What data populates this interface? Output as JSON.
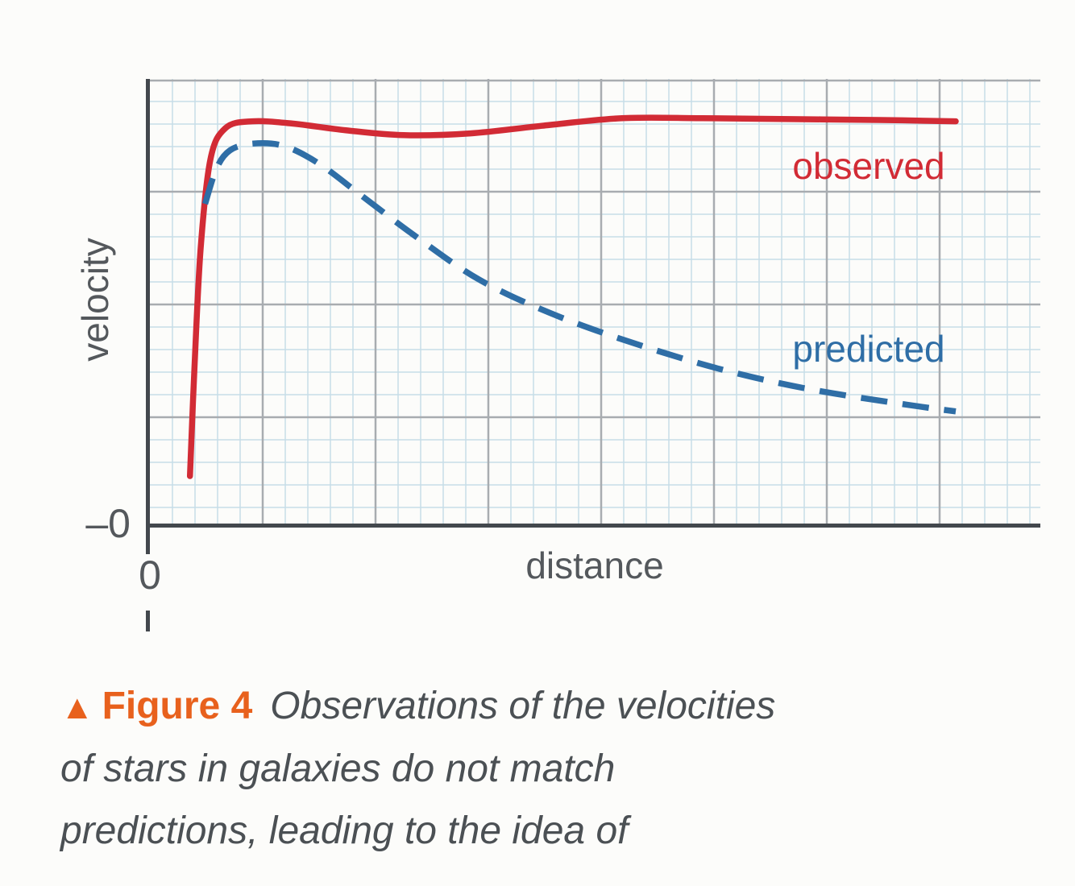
{
  "figure": {
    "marker": "▲",
    "label": "Figure 4",
    "caption": "Observations of the velocities of stars in galaxies do not match predictions, leading to the idea of"
  },
  "chart_data": {
    "type": "line",
    "title": "",
    "xlabel": "distance",
    "ylabel": "velocity",
    "x_origin_label": "0",
    "y_origin_label": "–0",
    "x_range": [
      0,
      1
    ],
    "y_range": [
      0,
      1
    ],
    "grid": true,
    "grid_colors": {
      "minor": "#c7dde8",
      "major": "#a8acb0"
    },
    "axis_color": "#43484d",
    "series": [
      {
        "name": "observed",
        "color": "#d22b35",
        "style": "solid",
        "points": [
          [
            0.045,
            0.11
          ],
          [
            0.05,
            0.35
          ],
          [
            0.057,
            0.62
          ],
          [
            0.068,
            0.82
          ],
          [
            0.085,
            0.89
          ],
          [
            0.115,
            0.905
          ],
          [
            0.16,
            0.9
          ],
          [
            0.22,
            0.885
          ],
          [
            0.285,
            0.874
          ],
          [
            0.36,
            0.878
          ],
          [
            0.44,
            0.895
          ],
          [
            0.53,
            0.912
          ],
          [
            0.62,
            0.912
          ],
          [
            0.72,
            0.91
          ],
          [
            0.82,
            0.908
          ],
          [
            0.905,
            0.905
          ]
        ]
      },
      {
        "name": "predicted",
        "color": "#2f6ea6",
        "style": "dashed",
        "points": [
          [
            0.062,
            0.72
          ],
          [
            0.075,
            0.8
          ],
          [
            0.09,
            0.84
          ],
          [
            0.115,
            0.855
          ],
          [
            0.15,
            0.85
          ],
          [
            0.19,
            0.81
          ],
          [
            0.24,
            0.735
          ],
          [
            0.3,
            0.645
          ],
          [
            0.37,
            0.55
          ],
          [
            0.45,
            0.475
          ],
          [
            0.54,
            0.41
          ],
          [
            0.64,
            0.35
          ],
          [
            0.74,
            0.305
          ],
          [
            0.85,
            0.27
          ],
          [
            0.905,
            0.255
          ]
        ]
      }
    ],
    "annotations": [
      {
        "text": "observed",
        "color": "#d22b35"
      },
      {
        "text": "predicted",
        "color": "#2f6ea6"
      }
    ]
  }
}
